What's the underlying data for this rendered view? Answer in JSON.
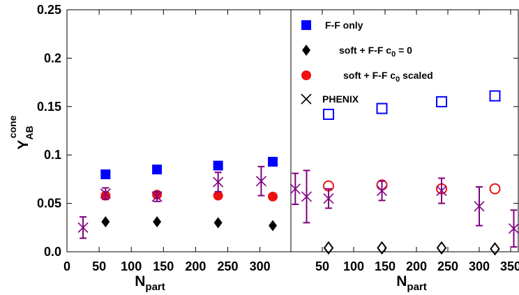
{
  "chart_data": [
    {
      "type": "scatter",
      "panel": "left",
      "xlabel": "N",
      "xlabel_sub": "part",
      "ylabel": "Y",
      "ylabel_sub": "AB",
      "ylabel_sup": "cone",
      "xlim": [
        0,
        370
      ],
      "ylim": [
        0,
        0.25
      ],
      "x_ticks": [
        "0",
        "50",
        "100",
        "150",
        "200",
        "250",
        "300"
      ],
      "x_tick_values": [
        0,
        50,
        100,
        150,
        200,
        250,
        300
      ],
      "y_ticks": [
        "0.0",
        "0.05",
        "0.1",
        "0.15",
        "0.2",
        "0.25"
      ],
      "y_tick_values": [
        0,
        0.05,
        0.1,
        0.15,
        0.2,
        0.25
      ],
      "series": [
        {
          "name": "F-F only",
          "marker": "filled-square",
          "color": "#0000ff",
          "points": [
            {
              "x": 60,
              "y": 0.08
            },
            {
              "x": 140,
              "y": 0.085
            },
            {
              "x": 235,
              "y": 0.089
            },
            {
              "x": 320,
              "y": 0.093
            }
          ]
        },
        {
          "name": "soft + F-F c0 = 0",
          "marker": "filled-diamond",
          "color": "#000000",
          "points": [
            {
              "x": 60,
              "y": 0.031
            },
            {
              "x": 140,
              "y": 0.031
            },
            {
              "x": 235,
              "y": 0.03
            },
            {
              "x": 320,
              "y": 0.027
            }
          ]
        },
        {
          "name": "soft + F-F c0 scaled",
          "marker": "filled-circle",
          "color": "#ee1111",
          "points": [
            {
              "x": 60,
              "y": 0.058
            },
            {
              "x": 140,
              "y": 0.059
            },
            {
              "x": 235,
              "y": 0.058
            },
            {
              "x": 320,
              "y": 0.057
            }
          ]
        },
        {
          "name": "PHENIX",
          "marker": "cross",
          "color": "#800080",
          "points": [
            {
              "x": 25,
              "y": 0.025,
              "err": 0.011
            },
            {
              "x": 60,
              "y": 0.06,
              "err": 0.006
            },
            {
              "x": 140,
              "y": 0.057,
              "err": 0.005
            },
            {
              "x": 235,
              "y": 0.072,
              "err": 0.01
            },
            {
              "x": 302,
              "y": 0.073,
              "err": 0.015
            },
            {
              "x": 355,
              "y": 0.065,
              "err": 0.016
            }
          ]
        }
      ]
    },
    {
      "type": "scatter",
      "panel": "right",
      "xlabel": "N",
      "xlabel_sub": "part",
      "xlim": [
        0,
        370
      ],
      "ylim": [
        0,
        0.25
      ],
      "x_ticks": [
        "50",
        "100",
        "150",
        "200",
        "250",
        "300",
        "350"
      ],
      "x_tick_values": [
        50,
        100,
        150,
        200,
        250,
        300,
        350
      ],
      "series": [
        {
          "name": "F-F only",
          "marker": "open-square",
          "color": "#0000ff",
          "points": [
            {
              "x": 60,
              "y": 0.142
            },
            {
              "x": 145,
              "y": 0.148
            },
            {
              "x": 240,
              "y": 0.155
            },
            {
              "x": 325,
              "y": 0.161
            }
          ]
        },
        {
          "name": "soft + F-F c0 = 0",
          "marker": "open-diamond",
          "color": "#000000",
          "points": [
            {
              "x": 60,
              "y": 0.004
            },
            {
              "x": 145,
              "y": 0.004
            },
            {
              "x": 240,
              "y": 0.004
            },
            {
              "x": 325,
              "y": 0.003
            }
          ]
        },
        {
          "name": "soft + F-F c0 scaled",
          "marker": "open-circle",
          "color": "#ee1111",
          "points": [
            {
              "x": 60,
              "y": 0.068
            },
            {
              "x": 145,
              "y": 0.069
            },
            {
              "x": 240,
              "y": 0.065
            },
            {
              "x": 325,
              "y": 0.065
            }
          ]
        },
        {
          "name": "PHENIX",
          "marker": "cross",
          "color": "#800080",
          "points": [
            {
              "x": 25,
              "y": 0.057,
              "err": 0.027
            },
            {
              "x": 60,
              "y": 0.055,
              "err": 0.01
            },
            {
              "x": 145,
              "y": 0.063,
              "err": 0.01
            },
            {
              "x": 240,
              "y": 0.063,
              "err": 0.013
            },
            {
              "x": 300,
              "y": 0.047,
              "err": 0.02
            },
            {
              "x": 355,
              "y": 0.024,
              "err": 0.019
            }
          ]
        }
      ]
    }
  ],
  "legend": {
    "placement": "top-right",
    "items": [
      {
        "marker": "filled-square",
        "color": "#0000ff",
        "text": "F-F only",
        "sub": "",
        "tail": ""
      },
      {
        "marker": "filled-diamond",
        "color": "#000000",
        "text": "soft + F-F c",
        "sub": "0",
        "tail": " = 0"
      },
      {
        "marker": "filled-circle",
        "color": "#ee1111",
        "text": "soft + F-F c",
        "sub": "0",
        "tail": " scaled"
      },
      {
        "marker": "cross",
        "color": "#000000",
        "text": "PHENIX",
        "sub": "",
        "tail": ""
      }
    ]
  }
}
